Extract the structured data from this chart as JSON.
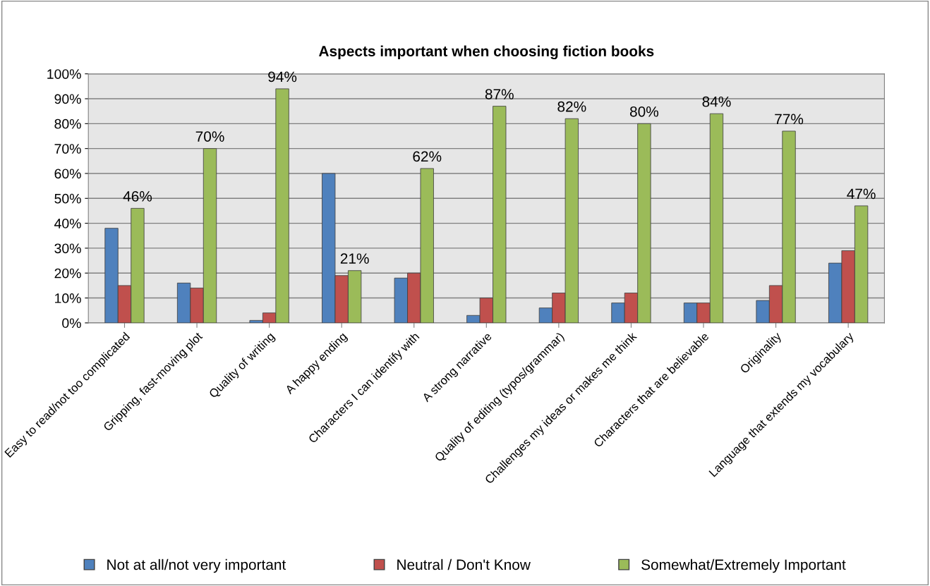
{
  "chart_data": {
    "type": "bar",
    "title": "Aspects important when choosing fiction books",
    "categories": [
      "Easy to read/not too complicated",
      "Gripping, fast-moving plot",
      "Quality of writing",
      "A happy ending",
      "Characters I can identify with",
      "A strong narrative",
      "Quality of editing (typos/grammar)",
      "Challenges my ideas or makes me think",
      "Characters that are believable",
      "Originality",
      "Language that extends my vocabulary"
    ],
    "series": [
      {
        "name": "Not at all/not very important",
        "color": "#4f81bd",
        "values": [
          38,
          16,
          1,
          60,
          18,
          3,
          6,
          8,
          8,
          9,
          24
        ]
      },
      {
        "name": "Neutral / Don't Know",
        "color": "#c0504d",
        "values": [
          15,
          14,
          4,
          19,
          20,
          10,
          12,
          12,
          8,
          15,
          29
        ]
      },
      {
        "name": "Somewhat/Extremely Important",
        "color": "#9bbb59",
        "values": [
          46,
          70,
          94,
          21,
          62,
          87,
          82,
          80,
          84,
          77,
          47
        ],
        "value_labels": [
          "46%",
          "70%",
          "94%",
          "21%",
          "62%",
          "87%",
          "82%",
          "80%",
          "84%",
          "77%",
          "47%"
        ]
      }
    ],
    "ylim": [
      0,
      100
    ],
    "yticks": [
      {
        "value": 0,
        "label": "0%"
      },
      {
        "value": 10,
        "label": "10%"
      },
      {
        "value": 20,
        "label": "20%"
      },
      {
        "value": 30,
        "label": "30%"
      },
      {
        "value": 40,
        "label": "40%"
      },
      {
        "value": 50,
        "label": "50%"
      },
      {
        "value": 60,
        "label": "60%"
      },
      {
        "value": 70,
        "label": "70%"
      },
      {
        "value": 80,
        "label": "80%"
      },
      {
        "value": 90,
        "label": "90%"
      },
      {
        "value": 100,
        "label": "100%"
      }
    ],
    "grid": "y",
    "legend": "bottom"
  }
}
